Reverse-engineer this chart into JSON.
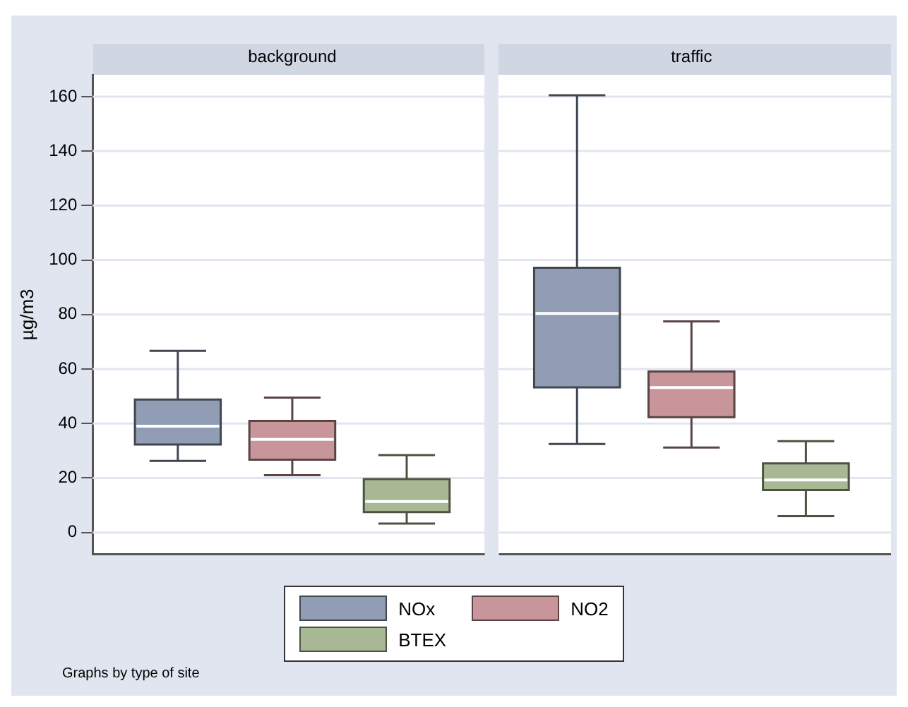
{
  "chart_data": {
    "type": "box",
    "ylabel": "µg/m3",
    "categories": [
      "background",
      "traffic"
    ],
    "ylim": [
      -8,
      168
    ],
    "yticks": [
      0,
      20,
      40,
      60,
      80,
      100,
      120,
      140,
      160
    ],
    "grid": "y",
    "legend": "bottom",
    "annotations": [
      "Graphs by type of site"
    ],
    "series": [
      {
        "name": "NOx",
        "color": "#909db5",
        "boxes": [
          {
            "low": 26.3,
            "q1": 32.3,
            "median": 39,
            "q3": 48.8,
            "high": 66.7
          },
          {
            "low": 32.5,
            "q1": 53.3,
            "median": 80.4,
            "q3": 97.2,
            "high": 160.5
          }
        ]
      },
      {
        "name": "NO2",
        "color": "#c8969a",
        "boxes": [
          {
            "low": 21,
            "q1": 26.7,
            "median": 34.2,
            "q3": 41,
            "high": 49.5
          },
          {
            "low": 31.2,
            "q1": 42.3,
            "median": 53.2,
            "q3": 59.1,
            "high": 77.5
          }
        ]
      },
      {
        "name": "BTEX",
        "color": "#a9b894",
        "boxes": [
          {
            "low": 3.3,
            "q1": 7.5,
            "median": 11.4,
            "q3": 19.6,
            "high": 28.4
          },
          {
            "low": 6,
            "q1": 15.6,
            "median": 19.3,
            "q3": 25.4,
            "high": 33.5
          }
        ]
      }
    ]
  }
}
